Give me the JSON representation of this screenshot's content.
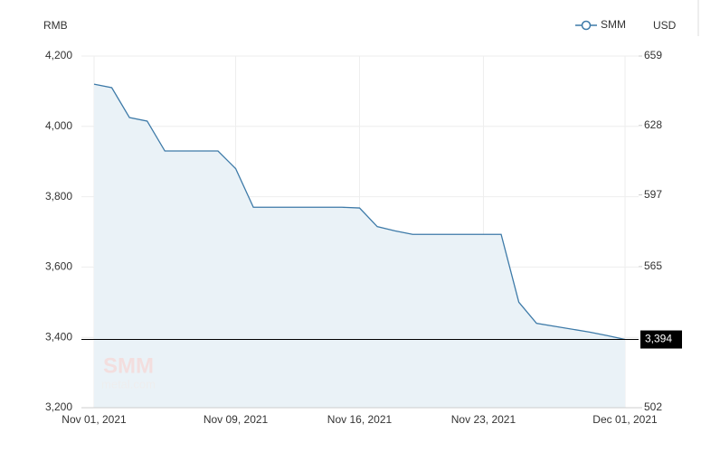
{
  "chart_data": {
    "type": "area",
    "y_label": "RMB",
    "y2_label": "USD",
    "x": [
      "2021-11-01",
      "2021-11-02",
      "2021-11-03",
      "2021-11-04",
      "2021-11-05",
      "2021-11-08",
      "2021-11-09",
      "2021-11-10",
      "2021-11-11",
      "2021-11-12",
      "2021-11-15",
      "2021-11-16",
      "2021-11-17",
      "2021-11-18",
      "2021-11-19",
      "2021-11-22",
      "2021-11-23",
      "2021-11-24",
      "2021-11-25",
      "2021-11-26",
      "2021-11-29",
      "2021-11-30",
      "2021-12-01"
    ],
    "series": [
      {
        "name": "SMM",
        "color": "#3d7aa8",
        "fill": "#eaf2f7",
        "values": [
          4120,
          4110,
          4025,
          4015,
          3930,
          3930,
          3880,
          3770,
          3770,
          3770,
          3770,
          3768,
          3715,
          3703,
          3693,
          3693,
          3693,
          3693,
          3500,
          3440,
          3415,
          3405,
          3394
        ]
      }
    ],
    "last_label": "3,394",
    "xlim": [
      "2021-11-01",
      "2021-12-01"
    ],
    "xticks": [
      {
        "value": "2021-11-01",
        "label": "Nov 01, 2021"
      },
      {
        "value": "2021-11-09",
        "label": "Nov 09, 2021"
      },
      {
        "value": "2021-11-16",
        "label": "Nov 16, 2021"
      },
      {
        "value": "2021-11-23",
        "label": "Nov 23, 2021"
      },
      {
        "value": "2021-12-01",
        "label": "Dec 01, 2021"
      }
    ],
    "ylim": [
      3200,
      4200
    ],
    "yticks": [
      {
        "value": 3200,
        "label": "3,200"
      },
      {
        "value": 3400,
        "label": "3,400"
      },
      {
        "value": 3600,
        "label": "3,600"
      },
      {
        "value": 3800,
        "label": "3,800"
      },
      {
        "value": 4000,
        "label": "4,000"
      },
      {
        "value": 4200,
        "label": "4,200"
      }
    ],
    "y2lim": [
      502,
      659
    ],
    "y2ticks": [
      502,
      565,
      597,
      628,
      659
    ],
    "grid": true,
    "watermark": [
      "SMM",
      "metal.com"
    ]
  }
}
